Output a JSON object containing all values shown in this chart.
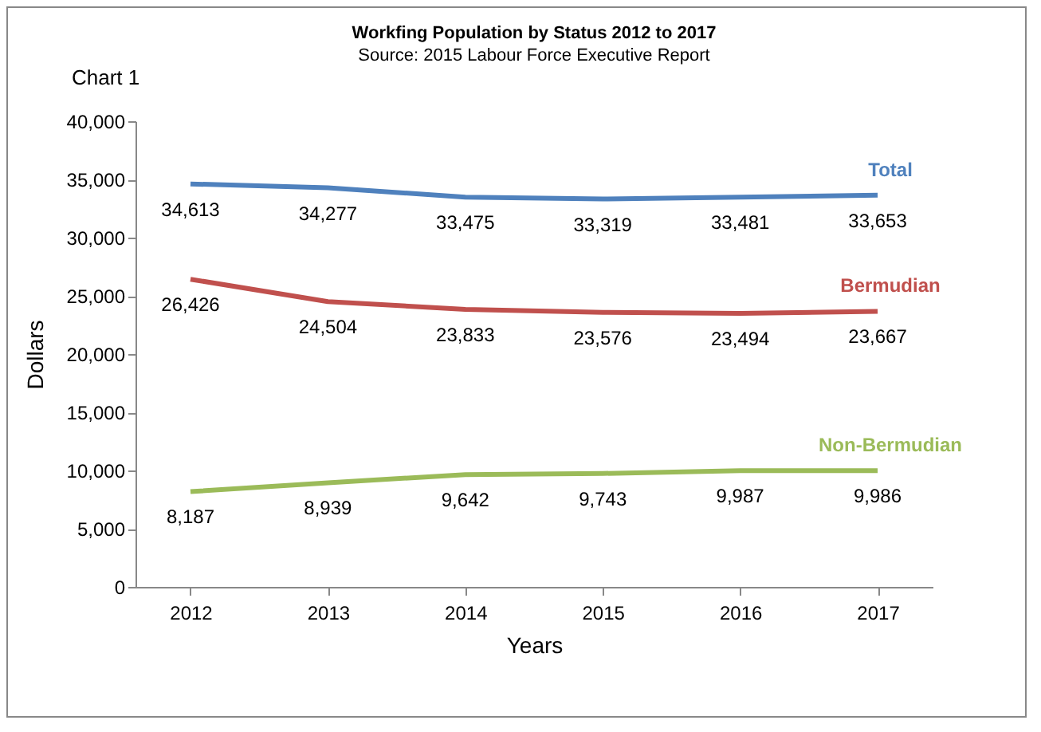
{
  "chart_data": {
    "type": "line",
    "title": "Workfing Population by Status 2012 to 2017",
    "subtitle": "Source: 2015 Labour Force Executive Report",
    "xlabel": "Years",
    "ylabel": "Dollars",
    "annotations": [
      "Chart 1"
    ],
    "categories": [
      "2012",
      "2013",
      "2014",
      "2015",
      "2016",
      "2017"
    ],
    "series": [
      {
        "name": "Total",
        "color": "#4f81bd",
        "values": [
          34613,
          34277,
          33475,
          33319,
          33481,
          33653
        ],
        "value_labels": [
          "34,613",
          "34,277",
          "33,475",
          "33,319",
          "33,481",
          "33,653"
        ]
      },
      {
        "name": "Bermudian",
        "color": "#c0504d",
        "values": [
          26426,
          24504,
          23833,
          23576,
          23494,
          23667
        ],
        "value_labels": [
          "26,426",
          "24,504",
          "23,833",
          "23,576",
          "23,494",
          "23,667"
        ]
      },
      {
        "name": "Non-Bermudian",
        "color": "#9bbb59",
        "values": [
          8187,
          8939,
          9642,
          9743,
          9987,
          9986
        ],
        "value_labels": [
          "8,187",
          "8,939",
          "9,642",
          "9,743",
          "9,987",
          "9,986"
        ]
      }
    ],
    "ylim": [
      0,
      40000
    ],
    "yticks": [
      0,
      {
        "value": 5000,
        "label": "5,000"
      },
      {
        "value": 10000,
        "label": "10,000"
      },
      {
        "value": 15000,
        "label": "15,000"
      },
      {
        "value": 20000,
        "label": "20,000"
      },
      {
        "value": 25000,
        "label": "25,000"
      },
      {
        "value": 30000,
        "label": "30,000"
      },
      {
        "value": 35000,
        "label": "35,000"
      },
      {
        "value": 40000,
        "label": "40,000"
      }
    ],
    "grid": false,
    "legend": false
  }
}
